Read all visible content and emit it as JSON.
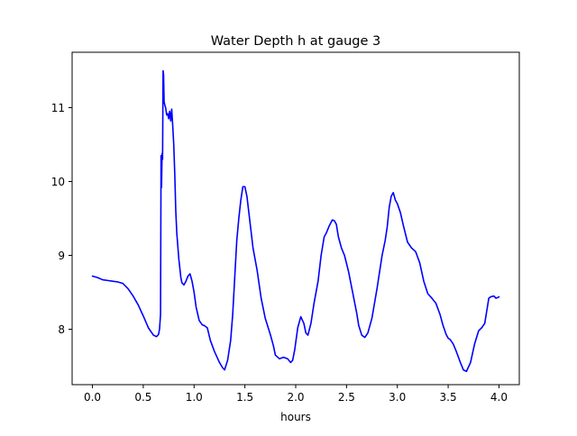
{
  "chart_data": {
    "type": "line",
    "title": "Water Depth h at gauge 3",
    "xlabel": "hours",
    "ylabel": "",
    "xlim": [
      -0.2,
      4.2
    ],
    "ylim": [
      7.25,
      11.75
    ],
    "xticks": [
      0.0,
      0.5,
      1.0,
      1.5,
      2.0,
      2.5,
      3.0,
      3.5,
      4.0
    ],
    "xtick_labels": [
      "0.0",
      "0.5",
      "1.0",
      "1.5",
      "2.0",
      "2.5",
      "3.0",
      "3.5",
      "4.0"
    ],
    "yticks": [
      8,
      9,
      10,
      11
    ],
    "ytick_labels": [
      "8",
      "9",
      "10",
      "11"
    ],
    "grid": false,
    "series": [
      {
        "color": "#0000ff",
        "x": [
          0.0,
          0.05,
          0.1,
          0.15,
          0.2,
          0.25,
          0.3,
          0.35,
          0.4,
          0.45,
          0.5,
          0.55,
          0.6,
          0.63,
          0.65,
          0.66,
          0.67,
          0.675,
          0.68,
          0.685,
          0.69,
          0.695,
          0.7,
          0.705,
          0.71,
          0.715,
          0.72,
          0.73,
          0.74,
          0.75,
          0.76,
          0.77,
          0.78,
          0.79,
          0.8,
          0.81,
          0.82,
          0.83,
          0.85,
          0.87,
          0.88,
          0.9,
          0.92,
          0.94,
          0.96,
          0.98,
          1.0,
          1.02,
          1.05,
          1.08,
          1.1,
          1.13,
          1.16,
          1.2,
          1.25,
          1.28,
          1.3,
          1.33,
          1.36,
          1.38,
          1.4,
          1.42,
          1.44,
          1.46,
          1.48,
          1.5,
          1.52,
          1.55,
          1.58,
          1.62,
          1.66,
          1.7,
          1.75,
          1.78,
          1.8,
          1.84,
          1.88,
          1.92,
          1.95,
          1.97,
          1.99,
          2.02,
          2.05,
          2.08,
          2.1,
          2.12,
          2.15,
          2.18,
          2.22,
          2.25,
          2.28,
          2.3,
          2.33,
          2.36,
          2.38,
          2.4,
          2.42,
          2.45,
          2.48,
          2.52,
          2.56,
          2.6,
          2.62,
          2.65,
          2.68,
          2.71,
          2.75,
          2.8,
          2.85,
          2.88,
          2.9,
          2.92,
          2.94,
          2.96,
          2.98,
          3.0,
          3.03,
          3.06,
          3.1,
          3.14,
          3.18,
          3.22,
          3.26,
          3.3,
          3.34,
          3.38,
          3.42,
          3.45,
          3.48,
          3.5,
          3.52,
          3.55,
          3.58,
          3.62,
          3.65,
          3.68,
          3.72,
          3.76,
          3.8,
          3.83,
          3.86,
          3.88,
          3.9,
          3.92,
          3.95,
          3.97,
          3.99,
          4.0
        ],
        "values": [
          8.72,
          8.7,
          8.67,
          8.66,
          8.65,
          8.64,
          8.62,
          8.55,
          8.45,
          8.33,
          8.18,
          8.02,
          7.92,
          7.9,
          7.93,
          8.0,
          8.2,
          10.35,
          9.92,
          10.38,
          10.3,
          11.5,
          11.45,
          11.08,
          11.05,
          11.02,
          11.0,
          10.9,
          10.92,
          10.85,
          10.95,
          10.82,
          10.98,
          10.75,
          10.5,
          10.1,
          9.6,
          9.3,
          8.95,
          8.7,
          8.63,
          8.6,
          8.65,
          8.72,
          8.75,
          8.65,
          8.5,
          8.3,
          8.12,
          8.06,
          8.05,
          8.02,
          7.85,
          7.7,
          7.55,
          7.48,
          7.45,
          7.58,
          7.85,
          8.2,
          8.7,
          9.2,
          9.5,
          9.75,
          9.93,
          9.93,
          9.8,
          9.45,
          9.1,
          8.8,
          8.42,
          8.15,
          7.93,
          7.78,
          7.65,
          7.6,
          7.62,
          7.6,
          7.55,
          7.58,
          7.72,
          8.02,
          8.17,
          8.08,
          7.95,
          7.92,
          8.08,
          8.35,
          8.65,
          9.0,
          9.25,
          9.3,
          9.4,
          9.48,
          9.47,
          9.42,
          9.25,
          9.1,
          9.0,
          8.78,
          8.5,
          8.22,
          8.05,
          7.92,
          7.89,
          7.95,
          8.15,
          8.55,
          9.0,
          9.2,
          9.38,
          9.65,
          9.8,
          9.85,
          9.75,
          9.7,
          9.58,
          9.4,
          9.18,
          9.1,
          9.05,
          8.9,
          8.65,
          8.48,
          8.42,
          8.35,
          8.2,
          8.05,
          7.93,
          7.88,
          7.86,
          7.8,
          7.7,
          7.55,
          7.45,
          7.43,
          7.55,
          7.8,
          7.98,
          8.02,
          8.08,
          8.25,
          8.42,
          8.44,
          8.45,
          8.42,
          8.43,
          8.44
        ]
      }
    ]
  }
}
